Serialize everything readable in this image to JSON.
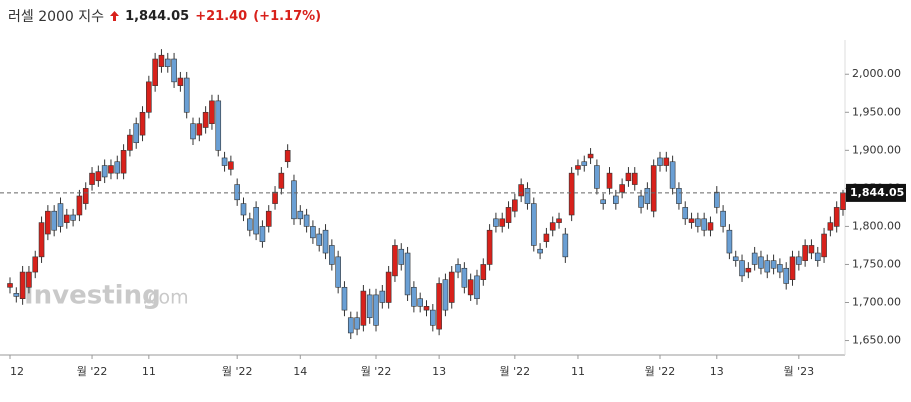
{
  "chart_data": {
    "type": "candlestick",
    "title": "러셀 2000 지수",
    "last_price": {
      "value": 1844.05,
      "label": "1,844.05"
    },
    "change": {
      "value": 21.4,
      "label": "+21.40"
    },
    "change_pct": {
      "value": 1.17,
      "label": "(+1.17%)"
    },
    "watermark": {
      "brand": "Investing",
      "suffix": ".com"
    },
    "up_color": "#d8211b",
    "down_color": "#6a9fd4",
    "ylim": [
      1631,
      2045
    ],
    "yticks": [
      {
        "value": 1650,
        "label": "1,650.00"
      },
      {
        "value": 1700,
        "label": "1,700.00"
      },
      {
        "value": 1750,
        "label": "1,750.00"
      },
      {
        "value": 1800,
        "label": "1,800.00"
      },
      {
        "value": 1850,
        "label": "1,850.00"
      },
      {
        "value": 1900,
        "label": "1,900.00"
      },
      {
        "value": 1950,
        "label": "1,950.00"
      },
      {
        "value": 2000,
        "label": "2,000.00"
      }
    ],
    "categories": [
      "12",
      null,
      null,
      null,
      null,
      null,
      null,
      null,
      null,
      null,
      null,
      null,
      null,
      "월 '22",
      null,
      null,
      null,
      null,
      null,
      null,
      null,
      null,
      "11",
      null,
      null,
      null,
      null,
      null,
      null,
      null,
      null,
      null,
      null,
      null,
      null,
      null,
      "월 '22",
      null,
      null,
      null,
      null,
      null,
      null,
      null,
      null,
      null,
      "14",
      null,
      null,
      null,
      null,
      null,
      null,
      null,
      null,
      null,
      null,
      null,
      "월 '22",
      null,
      null,
      null,
      null,
      null,
      null,
      null,
      null,
      null,
      "13",
      null,
      null,
      null,
      null,
      null,
      null,
      null,
      null,
      null,
      null,
      null,
      "월 '22",
      null,
      null,
      null,
      null,
      null,
      null,
      null,
      null,
      null,
      "11",
      null,
      null,
      null,
      null,
      null,
      null,
      null,
      null,
      null,
      null,
      null,
      null,
      "월 '22",
      null,
      null,
      null,
      null,
      null,
      null,
      null,
      null,
      "13",
      null,
      null,
      null,
      null,
      null,
      null,
      null,
      null,
      null,
      null,
      null,
      null,
      "월 '23",
      null,
      null,
      null,
      null,
      null,
      null,
      null
    ],
    "open": [
      1720,
      1712,
      1705,
      1720,
      1740,
      1760,
      1790,
      1820,
      1830,
      1805,
      1815,
      1815,
      1830,
      1855,
      1860,
      1880,
      1870,
      1885,
      1870,
      1900,
      1935,
      1920,
      1950,
      1985,
      2010,
      2020,
      2020,
      1985,
      1995,
      1935,
      1920,
      1930,
      1935,
      1965,
      1890,
      1875,
      1855,
      1830,
      1810,
      1825,
      1800,
      1800,
      1830,
      1850,
      1885,
      1860,
      1820,
      1815,
      1800,
      1790,
      1795,
      1775,
      1760,
      1720,
      1680,
      1680,
      1670,
      1710,
      1710,
      1715,
      1700,
      1735,
      1770,
      1765,
      1720,
      1705,
      1690,
      1690,
      1665,
      1730,
      1700,
      1750,
      1745,
      1710,
      1735,
      1730,
      1750,
      1810,
      1800,
      1805,
      1820,
      1840,
      1850,
      1830,
      1770,
      1780,
      1795,
      1805,
      1790,
      1815,
      1875,
      1885,
      1890,
      1880,
      1835,
      1850,
      1840,
      1845,
      1860,
      1855,
      1840,
      1850,
      1820,
      1890,
      1880,
      1885,
      1850,
      1825,
      1805,
      1810,
      1810,
      1795,
      1845,
      1820,
      1795,
      1760,
      1755,
      1740,
      1765,
      1760,
      1755,
      1755,
      1750,
      1745,
      1730,
      1760,
      1755,
      1765,
      1765,
      1760,
      1795,
      1800,
      1822
    ],
    "high": [
      1733,
      1720,
      1748,
      1748,
      1768,
      1813,
      1828,
      1828,
      1838,
      1823,
      1823,
      1848,
      1858,
      1878,
      1880,
      1888,
      1888,
      1893,
      1908,
      1928,
      1943,
      1958,
      1998,
      2028,
      2033,
      2028,
      2028,
      2003,
      2003,
      1943,
      1943,
      1958,
      1973,
      1973,
      1898,
      1893,
      1863,
      1838,
      1818,
      1833,
      1808,
      1828,
      1853,
      1878,
      1908,
      1868,
      1828,
      1823,
      1808,
      1798,
      1803,
      1783,
      1768,
      1728,
      1688,
      1688,
      1723,
      1718,
      1718,
      1723,
      1748,
      1783,
      1778,
      1773,
      1728,
      1713,
      1703,
      1698,
      1733,
      1738,
      1748,
      1758,
      1753,
      1738,
      1743,
      1758,
      1803,
      1818,
      1818,
      1833,
      1843,
      1863,
      1858,
      1838,
      1778,
      1798,
      1813,
      1818,
      1798,
      1878,
      1888,
      1893,
      1903,
      1888,
      1843,
      1878,
      1848,
      1863,
      1878,
      1878,
      1848,
      1858,
      1888,
      1898,
      1898,
      1893,
      1858,
      1833,
      1818,
      1818,
      1818,
      1813,
      1853,
      1828,
      1803,
      1768,
      1763,
      1753,
      1773,
      1768,
      1763,
      1763,
      1758,
      1753,
      1768,
      1768,
      1783,
      1783,
      1773,
      1798,
      1813,
      1833,
      1848
    ],
    "low": [
      1712,
      1700,
      1697,
      1712,
      1732,
      1752,
      1782,
      1787,
      1792,
      1797,
      1800,
      1807,
      1822,
      1847,
      1852,
      1857,
      1862,
      1862,
      1862,
      1892,
      1902,
      1912,
      1942,
      1977,
      2002,
      2002,
      1982,
      1977,
      1942,
      1907,
      1912,
      1922,
      1927,
      1892,
      1872,
      1867,
      1827,
      1807,
      1787,
      1782,
      1772,
      1792,
      1822,
      1842,
      1877,
      1802,
      1802,
      1792,
      1777,
      1767,
      1757,
      1742,
      1712,
      1682,
      1652,
      1657,
      1662,
      1672,
      1662,
      1692,
      1692,
      1727,
      1742,
      1702,
      1687,
      1687,
      1682,
      1662,
      1657,
      1682,
      1692,
      1732,
      1712,
      1702,
      1697,
      1722,
      1742,
      1792,
      1792,
      1797,
      1812,
      1832,
      1822,
      1767,
      1757,
      1772,
      1787,
      1797,
      1752,
      1807,
      1867,
      1872,
      1882,
      1842,
      1822,
      1842,
      1822,
      1837,
      1852,
      1847,
      1817,
      1822,
      1812,
      1872,
      1872,
      1842,
      1822,
      1802,
      1797,
      1792,
      1787,
      1787,
      1817,
      1792,
      1757,
      1747,
      1727,
      1732,
      1742,
      1737,
      1732,
      1737,
      1732,
      1717,
      1722,
      1742,
      1747,
      1757,
      1747,
      1752,
      1787,
      1792,
      1814
    ],
    "close": [
      1725,
      1708,
      1740,
      1740,
      1760,
      1805,
      1820,
      1795,
      1800,
      1815,
      1808,
      1840,
      1850,
      1870,
      1872,
      1865,
      1880,
      1870,
      1900,
      1920,
      1910,
      1950,
      1990,
      2020,
      2025,
      2010,
      1990,
      1995,
      1950,
      1915,
      1935,
      1950,
      1965,
      1900,
      1880,
      1885,
      1835,
      1815,
      1795,
      1790,
      1780,
      1820,
      1845,
      1870,
      1900,
      1810,
      1810,
      1800,
      1785,
      1775,
      1765,
      1750,
      1720,
      1690,
      1660,
      1665,
      1715,
      1680,
      1670,
      1700,
      1740,
      1775,
      1750,
      1710,
      1695,
      1695,
      1695,
      1670,
      1725,
      1690,
      1740,
      1740,
      1720,
      1730,
      1705,
      1750,
      1795,
      1800,
      1810,
      1825,
      1835,
      1855,
      1830,
      1775,
      1765,
      1790,
      1805,
      1810,
      1760,
      1870,
      1880,
      1880,
      1895,
      1850,
      1830,
      1870,
      1830,
      1855,
      1870,
      1870,
      1825,
      1830,
      1880,
      1880,
      1890,
      1850,
      1830,
      1810,
      1810,
      1800,
      1795,
      1805,
      1825,
      1800,
      1765,
      1755,
      1735,
      1745,
      1750,
      1745,
      1740,
      1745,
      1740,
      1725,
      1760,
      1750,
      1775,
      1775,
      1755,
      1790,
      1805,
      1825,
      1844.05
    ]
  }
}
